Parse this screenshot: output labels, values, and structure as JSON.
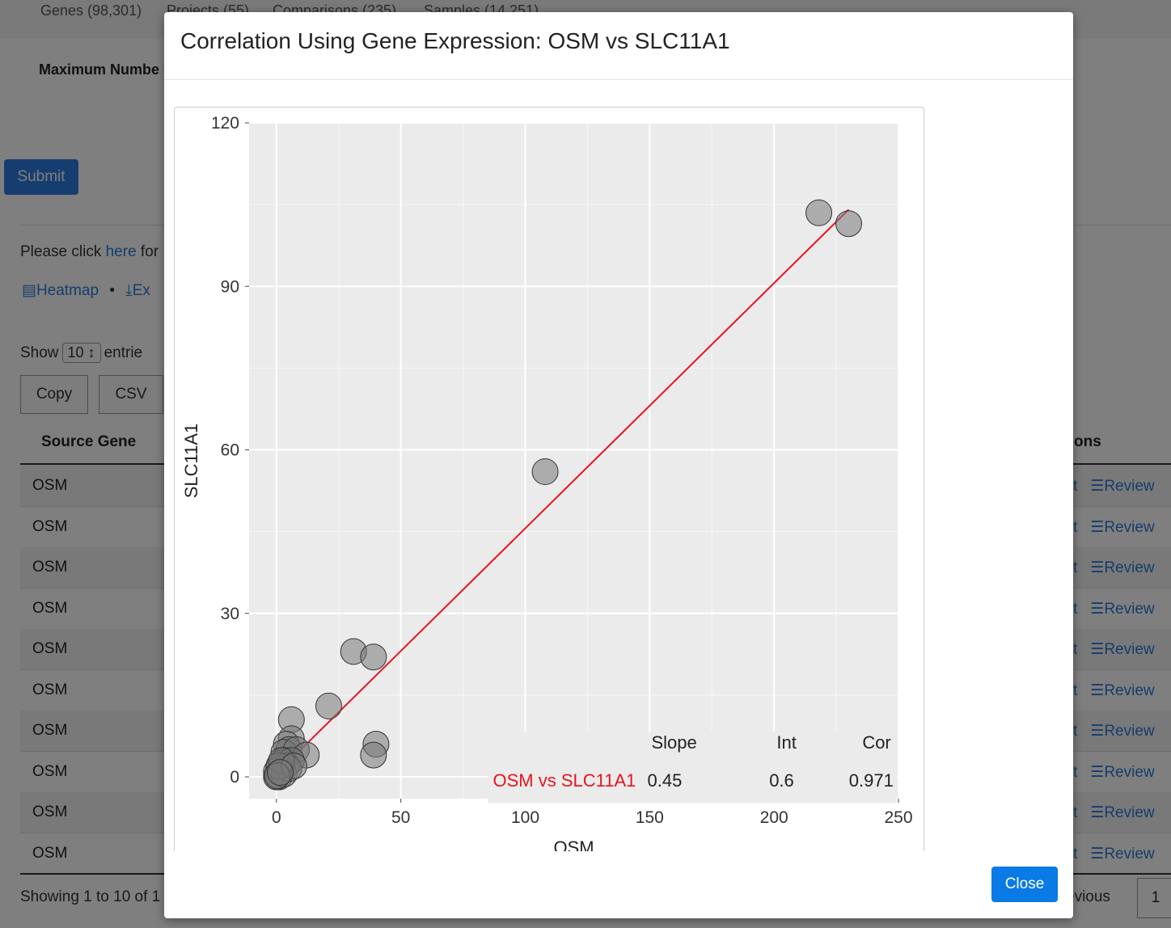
{
  "background": {
    "nav_tabs": [
      "Genes (98,301)",
      "Projects (55)",
      "Comparisons (235)",
      "Samples (14,251)"
    ],
    "max_label": "Maximum Numbe",
    "submit_label": "Submit",
    "please_prefix": "Please click ",
    "please_link": "here",
    "please_suffix": " for",
    "heatmap_label": "Heatmap",
    "bullet": "•",
    "export_label": "Ex",
    "show_prefix": "Show",
    "show_value": "10",
    "show_suffix": "entrie",
    "copy_label": "Copy",
    "csv_label": "CSV",
    "col_source": "Source Gene",
    "col_actions": "ons",
    "rows": [
      "OSM",
      "OSM",
      "OSM",
      "OSM",
      "OSM",
      "OSM",
      "OSM",
      "OSM",
      "OSM",
      "OSM"
    ],
    "row_action_plot": "t",
    "row_action_review": "Review",
    "showing_text": "Showing 1 to 10 of 1",
    "previous_text": "evious",
    "page_number": "1"
  },
  "modal": {
    "title": "Correlation Using Gene Expression: OSM vs SLC11A1",
    "close_label": "Close"
  },
  "chart_data": {
    "type": "scatter",
    "xlabel": "OSM",
    "ylabel": "SLC11A1",
    "xlim": [
      -11,
      250
    ],
    "ylim": [
      -4,
      120
    ],
    "xticks": [
      0,
      50,
      100,
      150,
      200,
      250
    ],
    "yticks": [
      0,
      30,
      60,
      90,
      120
    ],
    "grid": true,
    "points": [
      [
        218,
        103.5
      ],
      [
        230,
        101.5
      ],
      [
        108,
        56
      ],
      [
        31,
        23
      ],
      [
        39,
        22
      ],
      [
        21,
        13
      ],
      [
        40,
        6
      ],
      [
        39,
        4
      ],
      [
        6,
        10.5
      ],
      [
        6,
        7
      ],
      [
        4,
        6
      ],
      [
        5,
        5
      ],
      [
        3,
        4.5
      ],
      [
        8,
        5
      ],
      [
        12,
        4
      ],
      [
        3,
        3
      ],
      [
        2,
        2.5
      ],
      [
        6,
        3
      ],
      [
        4,
        2
      ],
      [
        1,
        1.5
      ],
      [
        0,
        1
      ],
      [
        0.5,
        0.5
      ],
      [
        1,
        0
      ],
      [
        2,
        1
      ],
      [
        0,
        0
      ],
      [
        3,
        0.5
      ],
      [
        5,
        1.5
      ],
      [
        1,
        2
      ],
      [
        2,
        3
      ],
      [
        7,
        2
      ],
      [
        0.3,
        0.2
      ],
      [
        1.5,
        0.8
      ]
    ],
    "fit_line": {
      "x": [
        0,
        230
      ],
      "y": [
        0.6,
        104.1
      ],
      "color": "#e8141e"
    },
    "stats": {
      "headers": [
        "Slope",
        "Int",
        "Cor"
      ],
      "label": "OSM vs SLC11A1",
      "values": [
        "0.45",
        "0.6",
        "0.971"
      ]
    }
  }
}
